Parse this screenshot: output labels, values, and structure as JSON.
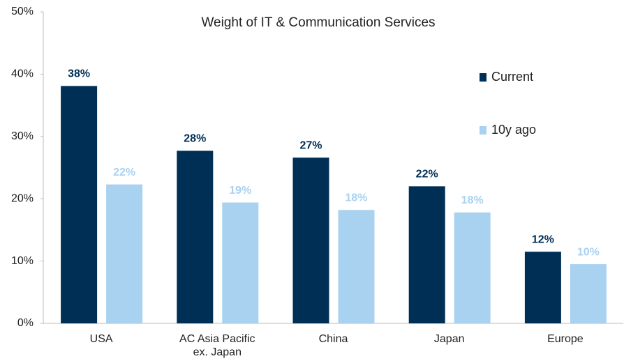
{
  "chart_data": {
    "type": "bar",
    "title": "Weight of IT & Communication Services",
    "categories": [
      "USA",
      "AC Asia Pacific ex. Japan",
      "China",
      "Japan",
      "Europe"
    ],
    "series": [
      {
        "name": "Current",
        "color": "#002f56",
        "values": [
          38.1,
          27.7,
          26.6,
          22.0,
          11.5
        ],
        "value_labels": [
          "38%",
          "28%",
          "27%",
          "22%",
          "12%"
        ]
      },
      {
        "name": "10y ago",
        "color": "#a8d2f0",
        "values": [
          22.3,
          19.4,
          18.2,
          17.8,
          9.5
        ],
        "value_labels": [
          "22%",
          "19%",
          "18%",
          "18%",
          "10%"
        ]
      }
    ],
    "ylim": [
      0,
      50
    ],
    "yticks": [
      {
        "value": 0,
        "label": "0%"
      },
      {
        "value": 10,
        "label": "10%"
      },
      {
        "value": 20,
        "label": "20%"
      },
      {
        "value": 30,
        "label": "30%"
      },
      {
        "value": 40,
        "label": "40%"
      },
      {
        "value": 50,
        "label": "50%"
      }
    ],
    "grid": false,
    "legend": "right"
  }
}
